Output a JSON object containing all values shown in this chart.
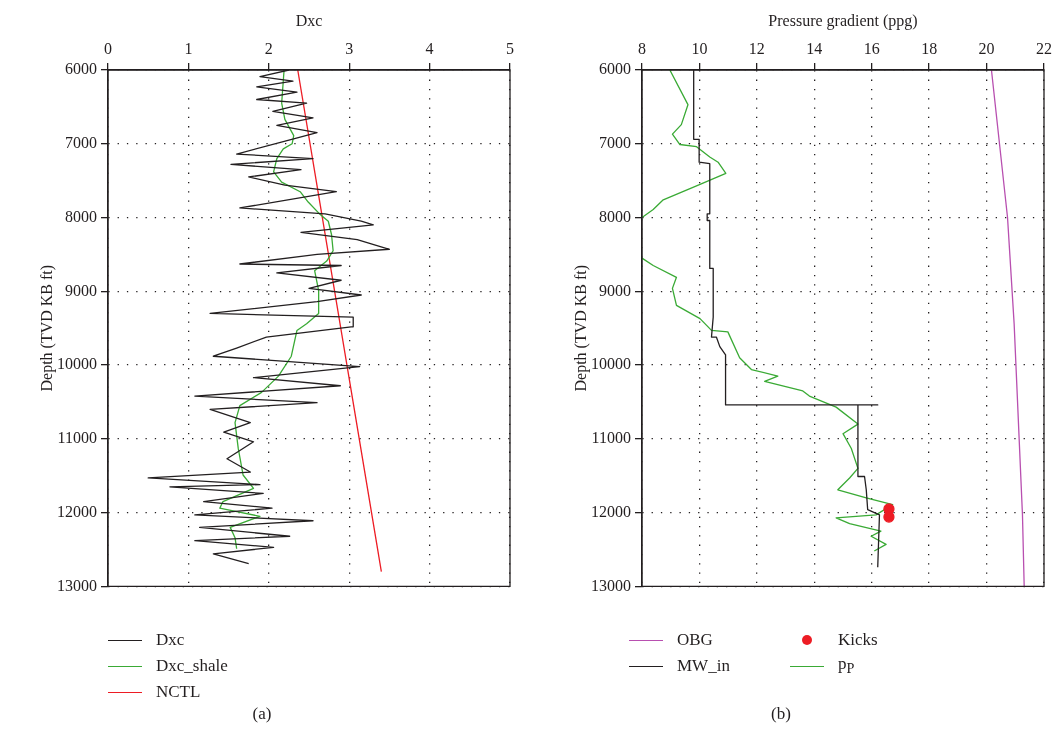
{
  "chart_data": [
    {
      "type": "line",
      "xlabel": "Dxc",
      "ylabel": "Depth (TVD KB ft)",
      "xlim": [
        0,
        5
      ],
      "xticks": [
        0,
        1,
        2,
        3,
        4,
        5
      ],
      "ylim": [
        13000,
        6000
      ],
      "yticks": [
        6000,
        7000,
        8000,
        9000,
        10000,
        11000,
        12000,
        13000
      ],
      "grid": true,
      "legend": "bottom",
      "annotations": [
        "(a)"
      ],
      "series": [
        {
          "name": "Dxc",
          "color": "#231f20",
          "marker": "none",
          "x": [
            2.25,
            1.89,
            2.3,
            1.85,
            2.35,
            1.85,
            2.47,
            2.05,
            2.55,
            2.1,
            2.6,
            2.25,
            1.6,
            2.55,
            1.53,
            2.4,
            1.75,
            2.2,
            2.84,
            1.64,
            2.7,
            3.15,
            3.3,
            2.4,
            3.1,
            3.5,
            2.6,
            1.64,
            2.9,
            2.1,
            2.9,
            2.5,
            3.15,
            2.6,
            1.27,
            3.05,
            3.05,
            1.97,
            1.6,
            1.31,
            3.13,
            1.81,
            2.89,
            1.08,
            2.6,
            1.27,
            1.77,
            1.44,
            1.81,
            1.48,
            1.77,
            0.5,
            1.89,
            0.77,
            1.93,
            1.19,
            2.04,
            1.08,
            2.55,
            1.14,
            2.26,
            1.08,
            2.06,
            1.31,
            1.75
          ],
          "values": [
            6000,
            6090,
            6150,
            6230,
            6300,
            6400,
            6450,
            6560,
            6650,
            6750,
            6850,
            6950,
            7140,
            7200,
            7280,
            7350,
            7450,
            7560,
            7650,
            7870,
            7950,
            8050,
            8100,
            8200,
            8300,
            8430,
            8500,
            8630,
            8650,
            8750,
            8850,
            8960,
            9050,
            9140,
            9300,
            9350,
            9480,
            9620,
            9770,
            9880,
            10020,
            10170,
            10280,
            10420,
            10510,
            10600,
            10780,
            10910,
            11040,
            11270,
            11450,
            11530,
            11620,
            11650,
            11740,
            11850,
            11940,
            12030,
            12110,
            12200,
            12320,
            12380,
            12470,
            12560,
            12690
          ]
        },
        {
          "name": "Dxc_shale",
          "color": "#3aaa35",
          "marker": "none",
          "x": [
            2.19,
            2.16,
            2.2,
            2.31,
            2.29,
            2.18,
            2.1,
            2.06,
            2.16,
            2.39,
            2.49,
            2.64,
            2.74,
            2.78,
            2.8,
            2.72,
            2.57,
            2.62,
            2.62,
            2.47,
            2.35,
            2.28,
            2.12,
            1.91,
            1.64,
            1.58,
            1.62,
            1.68,
            1.81,
            1.43,
            1.39,
            1.89,
            1.52,
            1.58,
            1.6
          ],
          "values": [
            6000,
            6450,
            6670,
            6890,
            7000,
            7070,
            7200,
            7380,
            7520,
            7650,
            7790,
            7960,
            8050,
            8230,
            8450,
            8590,
            8720,
            8990,
            9300,
            9440,
            9530,
            9880,
            10150,
            10370,
            10550,
            10780,
            11130,
            11490,
            11670,
            11850,
            11940,
            12050,
            12200,
            12340,
            12490
          ]
        },
        {
          "name": "NCTL",
          "color": "#ed1c24",
          "marker": "none",
          "x": [
            2.36,
            3.4
          ],
          "values": [
            6000,
            12800
          ]
        }
      ]
    },
    {
      "type": "line",
      "xlabel": "Pressure gradient (ppg)",
      "ylabel": "Depth (TVD KB ft)",
      "xlim": [
        8,
        22
      ],
      "xticks": [
        8,
        10,
        12,
        14,
        16,
        18,
        20,
        22
      ],
      "ylim": [
        13000,
        6000
      ],
      "yticks": [
        6000,
        7000,
        8000,
        9000,
        10000,
        11000,
        12000,
        13000
      ],
      "grid": true,
      "legend": "bottom",
      "annotations": [
        "(b)"
      ],
      "series": [
        {
          "name": "OBG",
          "color": "#b84fb0",
          "marker": "none",
          "x": [
            20.17,
            20.73,
            20.96,
            21.25,
            21.31
          ],
          "values": [
            6000,
            8000,
            9440,
            12030,
            13000
          ]
        },
        {
          "name": "MW_in",
          "color": "#231f20",
          "marker": "none",
          "x": [
            9.8,
            9.8,
            9.99,
            9.99,
            10.36,
            10.36,
            10.27,
            10.27,
            10.36,
            10.36,
            10.48,
            10.48,
            10.42,
            10.59,
            10.71,
            10.91,
            10.91,
            16.21,
            15.52,
            15.52,
            15.75,
            15.81,
            15.86,
            16.27,
            16.21
          ],
          "values": [
            6000,
            6940,
            6940,
            7250,
            7270,
            7950,
            7950,
            8040,
            8040,
            8690,
            8690,
            9350,
            9620,
            9620,
            9750,
            9860,
            10540,
            10540,
            10540,
            11510,
            11510,
            11690,
            11960,
            12030,
            12740
          ]
        },
        {
          "name": "Kicks",
          "type": "scatter",
          "color": "#ed1c24",
          "marker": "circle",
          "x": [
            16.6,
            16.6
          ],
          "values": [
            11950,
            12060
          ]
        },
        {
          "name": "p$_{P}$",
          "color": "#3aaa35",
          "marker": "none",
          "x": [
            8.97,
            9.6,
            9.37,
            9.06,
            9.32,
            9.9,
            10.36,
            10.65,
            10.92,
            9.96,
            8.74,
            8.39,
            8.0,
            null,
            8.0,
            8.39,
            9.2,
            9.06,
            9.2,
            10.02,
            10.42,
            10.99,
            11.4,
            11.81,
            12.73,
            12.27,
            13.6,
            13.83,
            14.76,
            15.52,
            15.0,
            15.29,
            15.52,
            15.23,
            14.82,
            15.81,
            16.73,
            16.15,
            14.76,
            15.23,
            16.32,
            15.98,
            16.5,
            16.09
          ],
          "values": [
            6000,
            6470,
            6740,
            6870,
            7010,
            7040,
            7180,
            7250,
            7400,
            7560,
            7760,
            7890,
            8000,
            null,
            8550,
            8650,
            8810,
            8960,
            9190,
            9370,
            9530,
            9550,
            9900,
            10060,
            10150,
            10220,
            10350,
            10420,
            10570,
            10800,
            10930,
            11130,
            11400,
            11530,
            11690,
            11800,
            11890,
            12030,
            12070,
            12150,
            12250,
            12320,
            12430,
            12520
          ]
        }
      ]
    }
  ]
}
